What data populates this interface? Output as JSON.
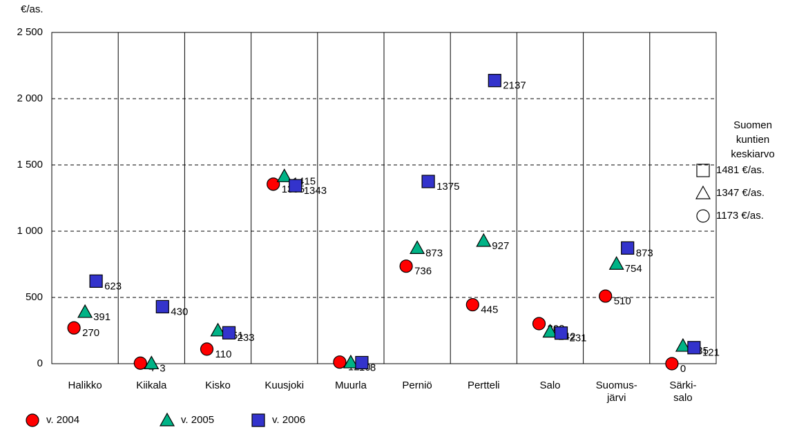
{
  "chart_data": {
    "type": "scatter",
    "y_label": "€/as.",
    "categories": [
      "Halikko",
      "Kiikala",
      "Kisko",
      "Kuusjoki",
      "Muurla",
      "Perniö",
      "Pertteli",
      "Salo",
      "Suomus-\njärvi",
      "Särki-\nsalo"
    ],
    "series": [
      {
        "name": "v. 2004",
        "marker": "circle",
        "color": "#ff0000",
        "values": [
          270,
          4,
          110,
          1355,
          12,
          736,
          445,
          302,
          510,
          0
        ]
      },
      {
        "name": "v. 2005",
        "marker": "triangle",
        "color": "#00b386",
        "values": [
          391,
          3,
          251,
          1415,
          10,
          873,
          927,
          242,
          754,
          135
        ]
      },
      {
        "name": "v. 2006",
        "marker": "square",
        "color": "#3333cc",
        "values": [
          623,
          430,
          233,
          1343,
          8,
          1375,
          2137,
          231,
          873,
          121
        ]
      }
    ],
    "ylim": [
      0,
      2500
    ],
    "yticks": [
      0,
      500,
      {
        "value": 1000,
        "label": "1 000"
      },
      {
        "value": 1500,
        "label": "1 500"
      },
      {
        "value": 2000,
        "label": "2 000"
      },
      {
        "value": 2500,
        "label": "2 500"
      }
    ],
    "grid": true,
    "reference": {
      "title": [
        "Suomen",
        "kuntien",
        "keskiarvo"
      ],
      "items": [
        "1481 €/as.",
        "1347 €/as.",
        "1173 €/as."
      ]
    }
  }
}
